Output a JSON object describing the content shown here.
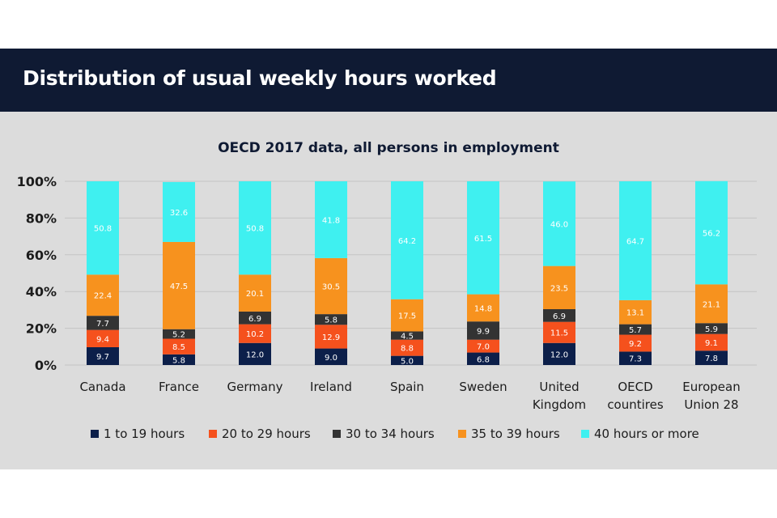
{
  "header": {
    "title": "Distribution of usual weekly hours worked"
  },
  "chart_data": {
    "type": "bar",
    "stacked": true,
    "subtitle": "OECD 2017 data, all persons in employment",
    "xlabel": "",
    "ylabel": "",
    "ylim": [
      0,
      100
    ],
    "y_ticks": [
      "0%",
      "20%",
      "40%",
      "60%",
      "80%",
      "100%"
    ],
    "y_tick_values": [
      0,
      20,
      40,
      60,
      80,
      100
    ],
    "grid": true,
    "legend_position": "bottom",
    "categories": [
      [
        "Canada"
      ],
      [
        "France"
      ],
      [
        "Germany"
      ],
      [
        "Ireland"
      ],
      [
        "Spain"
      ],
      [
        "Sweden"
      ],
      [
        "United",
        "Kingdom"
      ],
      [
        "OECD",
        "countires"
      ],
      [
        "European",
        "Union 28"
      ]
    ],
    "series": [
      {
        "name": "1 to 19 hours",
        "color": "#0c1f4a",
        "label_color": "#ffffff",
        "values": [
          9.7,
          5.8,
          12.0,
          9.0,
          5.0,
          6.8,
          12.0,
          7.3,
          7.8
        ]
      },
      {
        "name": "20 to 29 hours",
        "color": "#f5511d",
        "label_color": "#ffffff",
        "values": [
          9.4,
          8.5,
          10.2,
          12.9,
          8.8,
          7.0,
          11.5,
          9.2,
          9.1
        ]
      },
      {
        "name": "30 to 34 hours",
        "color": "#333333",
        "label_color": "#ffffff",
        "values": [
          7.7,
          5.2,
          6.9,
          5.8,
          4.5,
          9.9,
          6.9,
          5.7,
          5.9
        ]
      },
      {
        "name": "35 to 39 hours",
        "color": "#f7921e",
        "label_color": "#ffffff",
        "values": [
          22.4,
          47.5,
          20.1,
          30.5,
          17.5,
          14.8,
          23.5,
          13.1,
          21.1
        ]
      },
      {
        "name": "40 hours or more",
        "color": "#3ff0f0",
        "label_color": "#ffffff",
        "values": [
          50.8,
          32.6,
          50.8,
          41.8,
          64.2,
          61.5,
          46.0,
          64.7,
          56.2
        ]
      }
    ]
  }
}
